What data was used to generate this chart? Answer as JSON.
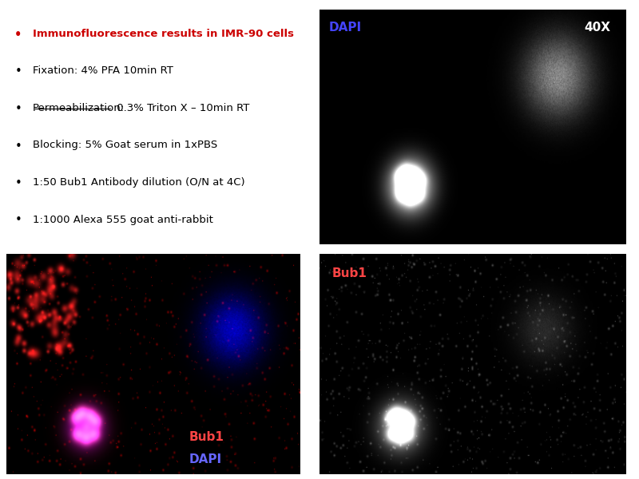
{
  "fig_width": 8.0,
  "fig_height": 6.0,
  "bg_color": "#ffffff",
  "text_panel": {
    "bullet_color_1": "#cc0000",
    "bullet_color_rest": "#000000",
    "text_color_1": "#cc0000",
    "text_color_rest": "#000000",
    "lines": [
      "Immunofluorescence results in IMR-90 cells",
      "Fixation: 4% PFA 10min RT",
      "Permeabilization: 0.3% Triton X – 10min RT",
      "Blocking: 5% Goat serum in 1xPBS",
      "1:50 Bub1 Antibody dilution (O/N at 4C)",
      "1:1000 Alexa 555 goat anti-rabbit"
    ]
  },
  "panel_top_right": {
    "label_dapi": "DAPI",
    "label_dapi_color": "#4444ff",
    "label_mag": "40X",
    "label_mag_color": "#ffffff",
    "bg": "#000000"
  },
  "panel_bottom_left": {
    "label1": "Bub1",
    "label1_color": "#ff4444",
    "label2": "DAPI",
    "label2_color": "#6666ff",
    "bg": "#000000"
  },
  "panel_bottom_right": {
    "label": "Bub1",
    "label_color": "#ff4444",
    "bg": "#000000"
  }
}
